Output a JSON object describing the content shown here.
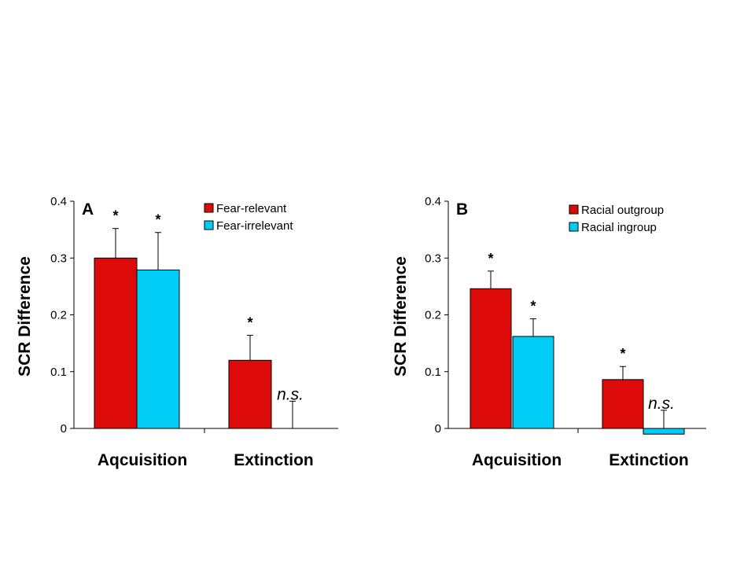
{
  "chart_data": [
    {
      "type": "bar",
      "panel_label": "A",
      "ylabel": "SCR Difference",
      "ylim": [
        0,
        0.4
      ],
      "yticks": [
        "0",
        "0.1",
        "0.2",
        "0.3",
        "0.4"
      ],
      "categories": [
        "Aqcuisition",
        "Extinction"
      ],
      "series": [
        {
          "name": "Fear-relevant",
          "color": "#dd0a0a",
          "values": [
            0.3,
            0.12
          ],
          "errors": [
            0.052,
            0.044
          ],
          "annotations": [
            "*",
            "*"
          ]
        },
        {
          "name": "Fear-irrelevant",
          "color": "#00ccf5",
          "values": [
            0.279,
            0.0
          ],
          "errors": [
            0.066,
            0.048
          ],
          "annotations": [
            "*",
            "n.s."
          ]
        }
      ],
      "legend_position": "top-right",
      "grid": false
    },
    {
      "type": "bar",
      "panel_label": "B",
      "ylabel": "SCR Difference",
      "ylim": [
        0,
        0.4
      ],
      "yticks": [
        "0",
        "0.1",
        "0.2",
        "0.3",
        "0.4"
      ],
      "categories": [
        "Aqcuisition",
        "Extinction"
      ],
      "series": [
        {
          "name": "Racial outgroup",
          "color": "#dd0a0a",
          "values": [
            0.246,
            0.086
          ],
          "errors": [
            0.031,
            0.023
          ],
          "annotations": [
            "*",
            "*"
          ]
        },
        {
          "name": "Racial ingroup",
          "color": "#00ccf5",
          "values": [
            0.162,
            -0.01
          ],
          "errors": [
            0.031,
            0.032
          ],
          "annotations": [
            "*",
            "n.s."
          ]
        }
      ],
      "legend_position": "top-right",
      "grid": false
    }
  ]
}
